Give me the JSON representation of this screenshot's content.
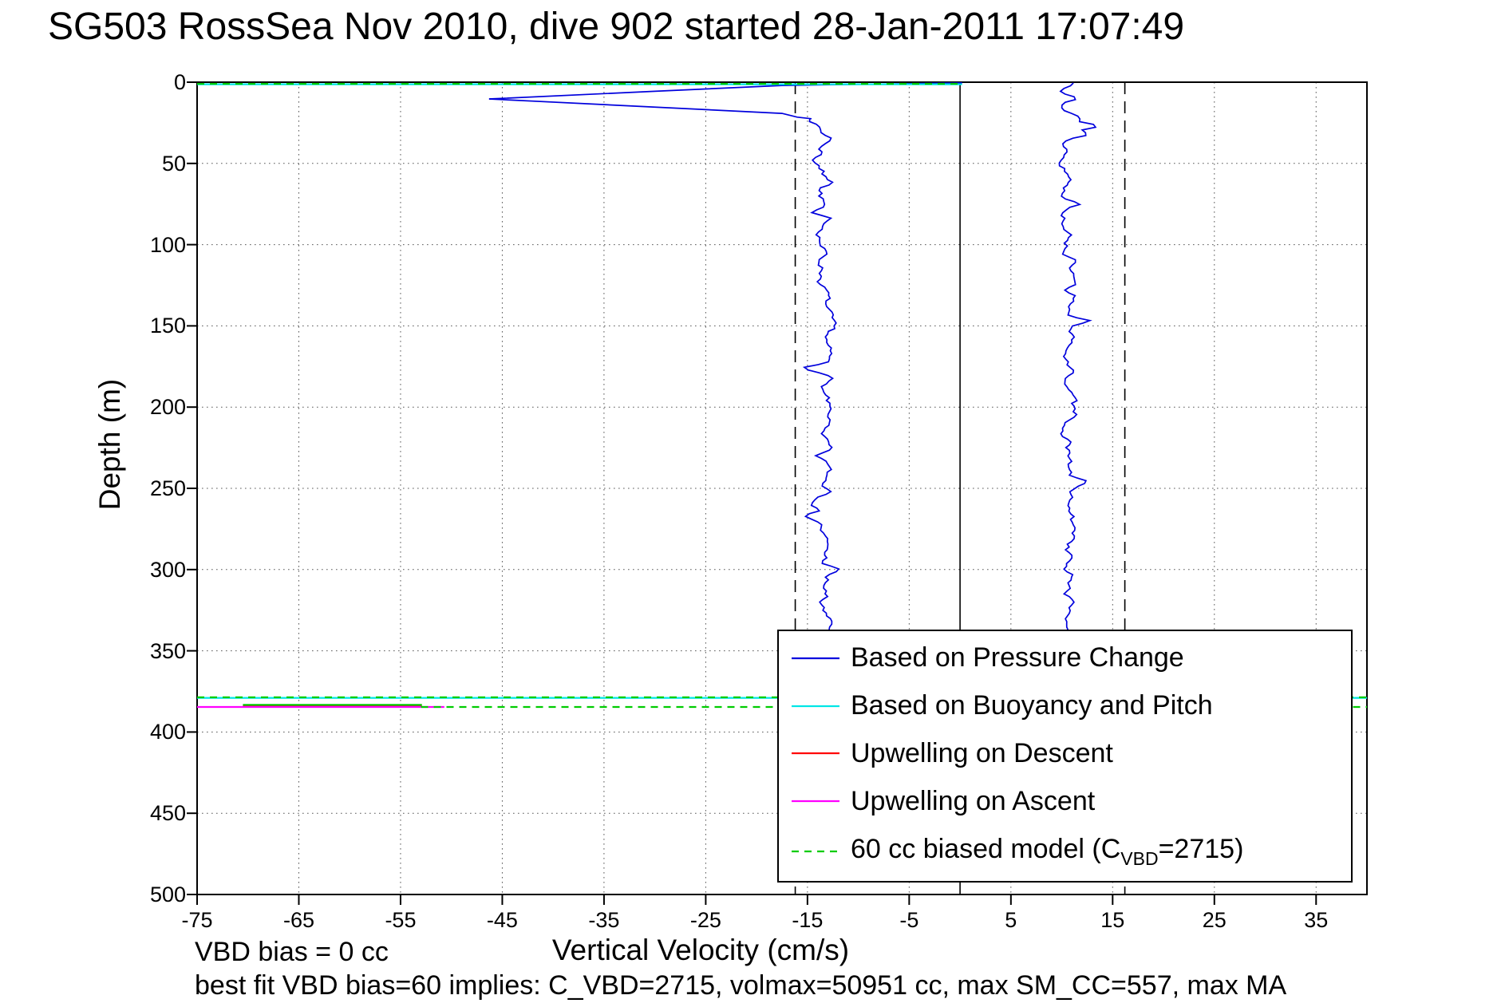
{
  "figure": {
    "title": "SG503 RossSea Nov 2010, dive 902 started 28-Jan-2011 17:07:49",
    "vbd_bias_note": "VBD bias = 0 cc",
    "best_fit_note": "best fit VBD bias=60 implies: C_VBD=2715, volmax=50951 cc, max SM_CC=557, max MA"
  },
  "colors": {
    "blue": "#0000dd",
    "cyan": "#00e6e6",
    "red": "#ff0000",
    "magenta": "#ff00ff",
    "green": "#00cc00",
    "grid": "#3a3a3a",
    "axis": "#000000"
  },
  "chart_data": {
    "type": "line",
    "title": "SG503 RossSea Nov 2010, dive 902 started 28-Jan-2011 17:07:49",
    "axes": {
      "xlabel": "Vertical Velocity (cm/s)",
      "ylabel": "Depth (m)",
      "xlim": [
        -75,
        40
      ],
      "ylim": [
        0,
        500
      ],
      "y_reversed": true,
      "xticks": [
        -75,
        -65,
        -55,
        -45,
        -35,
        -25,
        -15,
        -5,
        5,
        15,
        25,
        35
      ],
      "yticks": [
        0,
        50,
        100,
        150,
        200,
        250,
        300,
        350,
        400,
        450,
        500
      ],
      "grid": true
    },
    "reference_lines": [
      {
        "x": 0,
        "style": "solid"
      },
      {
        "x": -16.2,
        "style": "dashed"
      },
      {
        "x": 16.2,
        "style": "dashed"
      }
    ],
    "legend": [
      {
        "label": "Based on Pressure Change",
        "color": "blue",
        "dash": false
      },
      {
        "label": "Based on Buoyancy and Pitch",
        "color": "cyan",
        "dash": false
      },
      {
        "label": "Upwelling on Descent",
        "color": "red",
        "dash": false
      },
      {
        "label": "Upwelling on Ascent",
        "color": "magenta",
        "dash": false
      },
      {
        "pre": "60 cc biased model (C",
        "sub": "VBD",
        "post": "=2715)",
        "color": "green",
        "dash": true
      }
    ],
    "series": [
      {
        "name": "Based on Pressure Change",
        "color": "blue",
        "segments": [
          {
            "type": "polyline",
            "points": [
              [
                0.2,
                0.4
              ],
              [
                -5,
                0.9
              ],
              [
                -17.5,
                2.0
              ],
              [
                -30,
                5.6
              ],
              [
                -46.3,
                10.3
              ]
            ]
          },
          {
            "type": "polyline",
            "points": [
              [
                -46.3,
                10.3
              ],
              [
                -17.5,
                19.2
              ],
              [
                -16.0,
                21.5
              ],
              [
                -14.6,
                22.5
              ]
            ]
          },
          {
            "type": "walk",
            "from_d": 22.5,
            "to_d": 338,
            "step": 1.7,
            "mean": -13.4,
            "start_v": -14.6,
            "amp": 0.75,
            "seed": 7,
            "excursions": [
              [
                35,
                -12.6
              ],
              [
                48,
                -14.5
              ],
              [
                62,
                -12.5
              ],
              [
                80,
                -14.6
              ],
              [
                110,
                -13.9
              ],
              [
                130,
                -12.9
              ],
              [
                176,
                -15.4
              ],
              [
                182,
                -12.5
              ],
              [
                205,
                -13.0
              ],
              [
                230,
                -14.2
              ],
              [
                252,
                -12.7
              ],
              [
                267,
                -15.2
              ],
              [
                285,
                -13.0
              ],
              [
                300,
                -11.9
              ],
              [
                320,
                -13.8
              ],
              [
                333,
                -12.6
              ]
            ]
          },
          {
            "type": "walk",
            "from_d": 0.5,
            "to_d": 338,
            "step": 1.7,
            "mean": 10.7,
            "start_v": 11.2,
            "amp": 0.7,
            "seed": 13,
            "excursions": [
              [
                6,
                9.8
              ],
              [
                10,
                11.5
              ],
              [
                16,
                10.0
              ],
              [
                22,
                11.8
              ],
              [
                27,
                13.6
              ],
              [
                32,
                12.6
              ],
              [
                38,
                10.1
              ],
              [
                60,
                10.9
              ],
              [
                75,
                11.8
              ],
              [
                90,
                10.2
              ],
              [
                110,
                11.4
              ],
              [
                128,
                10.3
              ],
              [
                147,
                12.8
              ],
              [
                160,
                11.0
              ],
              [
                185,
                10.3
              ],
              [
                205,
                11.5
              ],
              [
                225,
                10.4
              ],
              [
                246,
                12.5
              ],
              [
                260,
                10.6
              ],
              [
                280,
                11.3
              ],
              [
                300,
                10.2
              ],
              [
                320,
                11.2
              ],
              [
                335,
                10.5
              ]
            ]
          }
        ]
      },
      {
        "name": "Based on Buoyancy and Pitch",
        "color": "cyan",
        "segments": [
          {
            "type": "polyline",
            "points": [
              [
                -75,
                1.3
              ],
              [
                0.2,
                1.3
              ]
            ]
          },
          {
            "type": "polyline",
            "points": [
              [
                -75,
                379.0
              ],
              [
                40,
                379.0
              ]
            ]
          }
        ]
      },
      {
        "name": "Upwelling on Descent",
        "color": "red",
        "segments": [
          {
            "type": "polyline",
            "points": [
              [
                -70.5,
                384.0
              ],
              [
                -52.9,
                384.0
              ]
            ]
          }
        ]
      },
      {
        "name": "Upwelling on Ascent",
        "color": "magenta",
        "segments": [
          {
            "type": "polyline",
            "points": [
              [
                -75,
                384.6
              ],
              [
                -50.7,
                384.6
              ]
            ]
          }
        ]
      },
      {
        "name": "60 cc biased model (C_VBD=2715)",
        "color": "green",
        "segments": [
          {
            "type": "polyline",
            "dash": true,
            "points": [
              [
                -75,
                1.0
              ],
              [
                0.2,
                1.0
              ]
            ]
          },
          {
            "type": "polyline",
            "dash": true,
            "points": [
              [
                -75,
                378.6
              ],
              [
                40,
                378.6
              ]
            ]
          },
          {
            "type": "polyline",
            "dash": false,
            "points": [
              [
                -70.5,
                383.3
              ],
              [
                -52.9,
                383.3
              ]
            ]
          },
          {
            "type": "polyline",
            "dash": true,
            "points": [
              [
                -53.0,
                384.6
              ],
              [
                40,
                384.6
              ]
            ]
          }
        ]
      }
    ]
  }
}
